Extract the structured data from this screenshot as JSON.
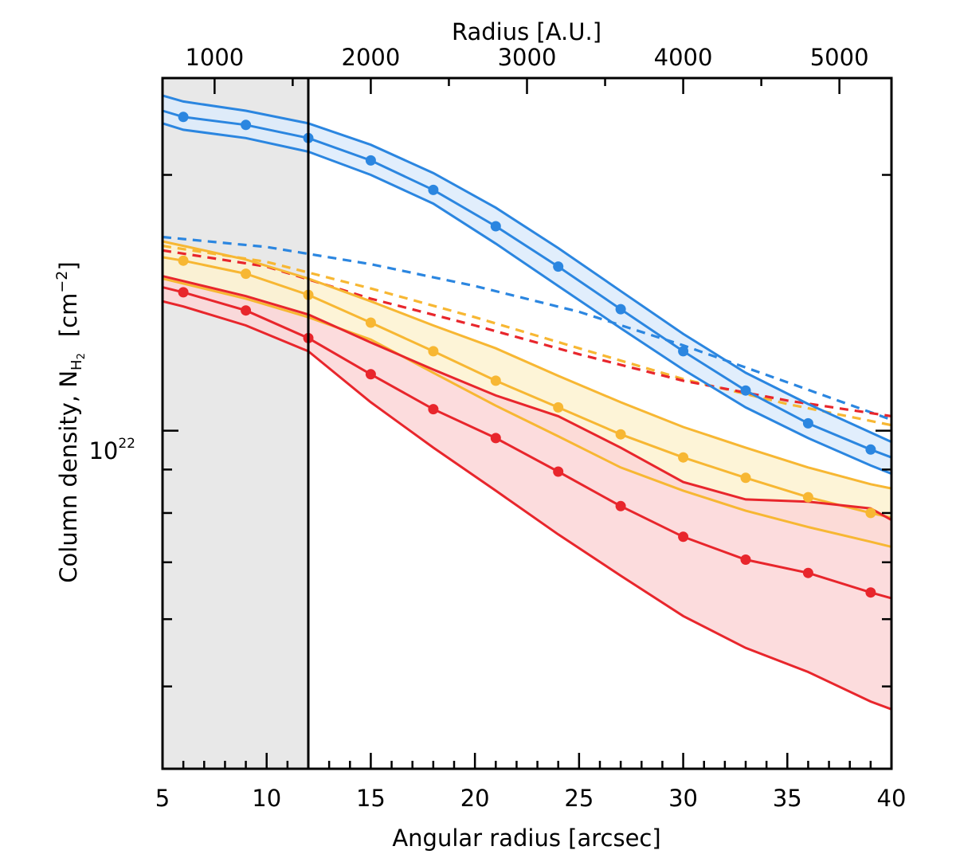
{
  "chart_data": {
    "type": "line",
    "title": "",
    "xlabel": "Angular radius [arcsec]",
    "x2label": "Radius [A.U.]",
    "ylabel_main": "Column density, N",
    "ylabel_sub": "H",
    "ylabel_sub2": "2",
    "ylabel_units": "[cm",
    "ylabel_units_exp": "−2",
    "ylabel_units_close": "]",
    "xlim": [
      5,
      40
    ],
    "ylim": [
      4e+21,
      2.6e+22
    ],
    "yscale": "log",
    "x_ticks": [
      5,
      10,
      15,
      20,
      25,
      30,
      35,
      40
    ],
    "x_tick_labels": [
      "5",
      "10",
      "15",
      "20",
      "25",
      "30",
      "35",
      "40"
    ],
    "x_minor_step": 1,
    "x2_ticks_arcsec": [
      7.5,
      15.0,
      22.5,
      30.0,
      37.5
    ],
    "x2_tick_labels": [
      "1000",
      "2000",
      "3000",
      "4000",
      "5000"
    ],
    "y_labeled_tick_base": "10",
    "y_labeled_tick_exp": "22",
    "y_labeled_tick_value": 1e+22,
    "y_minor_ticks": [
      5e+21,
      6e+21,
      7e+21,
      8e+21,
      9e+21,
      2e+22
    ],
    "shaded_region": {
      "x_from": 5,
      "x_to": 12,
      "color": "#e8e8e8"
    },
    "vertical_line_x": 12,
    "colors": {
      "blue": "#2b86e0",
      "yellow": "#f7b733",
      "red": "#e8262c"
    },
    "series": [
      {
        "name": "blue",
        "color": "#2b86e0",
        "band_fill": "#dcebfb",
        "x": [
          5,
          6,
          9,
          12,
          15,
          18,
          21,
          24,
          27,
          30,
          33,
          36,
          39,
          40
        ],
        "center": [
          2.38e+22,
          2.34e+22,
          2.29e+22,
          2.21e+22,
          2.08e+22,
          1.92e+22,
          1.74e+22,
          1.56e+22,
          1.39e+22,
          1.24e+22,
          1.115e+22,
          1.02e+22,
          9.5e+21,
          9.3e+21
        ],
        "upper": [
          2.48e+22,
          2.44e+22,
          2.38e+22,
          2.3e+22,
          2.17e+22,
          2.01e+22,
          1.83e+22,
          1.64e+22,
          1.46e+22,
          1.3e+22,
          1.17e+22,
          1.075e+22,
          9.95e+21,
          9.7e+21
        ],
        "lower": [
          2.3e+22,
          2.26e+22,
          2.21e+22,
          2.13e+22,
          2e+22,
          1.85e+22,
          1.66e+22,
          1.48e+22,
          1.32e+22,
          1.18e+22,
          1.065e+22,
          9.8e+21,
          9.1e+21,
          8.9e+21
        ],
        "markers_x": [
          6,
          9,
          12,
          15,
          18,
          21,
          24,
          27,
          30,
          33,
          36,
          39
        ],
        "dashed_x": [
          5,
          10,
          15,
          20,
          25,
          30,
          35,
          40
        ],
        "dashed": [
          1.69e+22,
          1.645e+22,
          1.57e+22,
          1.48e+22,
          1.38e+22,
          1.26e+22,
          1.14e+22,
          1.03e+22
        ]
      },
      {
        "name": "yellow",
        "color": "#f7b733",
        "band_fill": "#fdf2d0",
        "x": [
          5,
          6,
          9,
          12,
          15,
          18,
          21,
          24,
          27,
          30,
          33,
          36,
          39,
          40
        ],
        "center": [
          1.6e+22,
          1.585e+22,
          1.53e+22,
          1.445e+22,
          1.34e+22,
          1.24e+22,
          1.145e+22,
          1.065e+22,
          9.9e+21,
          9.3e+21,
          8.8e+21,
          8.35e+21,
          8e+21,
          7.9e+21
        ],
        "upper": [
          1.67e+22,
          1.65e+22,
          1.59e+22,
          1.51e+22,
          1.42e+22,
          1.33e+22,
          1.25e+22,
          1.16e+22,
          1.08e+22,
          1.01e+22,
          9.55e+21,
          9.05e+21,
          8.65e+21,
          8.55e+21
        ],
        "lower": [
          1.51e+22,
          1.49e+22,
          1.43e+22,
          1.36e+22,
          1.28e+22,
          1.17e+22,
          1.07e+22,
          9.85e+21,
          9.05e+21,
          8.5e+21,
          8.05e+21,
          7.7e+21,
          7.4e+21,
          7.3e+21
        ],
        "markers_x": [
          6,
          9,
          12,
          15,
          18,
          21,
          24,
          27,
          30,
          33,
          36,
          39
        ],
        "dashed_x": [
          5,
          10,
          15,
          20,
          25,
          30,
          35,
          40
        ],
        "dashed": [
          1.65e+22,
          1.58e+22,
          1.47e+22,
          1.36e+22,
          1.25e+22,
          1.15e+22,
          1.075e+22,
          1.015e+22
        ]
      },
      {
        "name": "red",
        "color": "#e8262c",
        "band_fill": "#fbd6d7",
        "x": [
          5,
          6,
          9,
          12,
          15,
          18,
          21,
          24,
          27,
          30,
          33,
          36,
          39,
          40
        ],
        "center": [
          1.475e+22,
          1.455e+22,
          1.385e+22,
          1.285e+22,
          1.165e+22,
          1.06e+22,
          9.8e+21,
          8.95e+21,
          8.15e+21,
          7.5e+21,
          7.05e+21,
          6.8e+21,
          6.45e+21,
          6.35e+21
        ],
        "upper": [
          1.52e+22,
          1.5e+22,
          1.44e+22,
          1.37e+22,
          1.27e+22,
          1.18e+22,
          1.1e+22,
          1.04e+22,
          9.55e+21,
          8.7e+21,
          8.3e+21,
          8.25e+21,
          8.1e+21,
          7.85e+21
        ],
        "lower": [
          1.42e+22,
          1.4e+22,
          1.33e+22,
          1.24e+22,
          1.08e+22,
          9.55e+21,
          8.5e+21,
          7.55e+21,
          6.75e+21,
          6.05e+21,
          5.55e+21,
          5.2e+21,
          4.8e+21,
          4.7e+21
        ],
        "markers_x": [
          6,
          9,
          12,
          15,
          18,
          21,
          24,
          27,
          30,
          33,
          36,
          39
        ],
        "dashed_x": [
          5,
          10,
          15,
          20,
          25,
          30,
          35,
          40
        ],
        "dashed": [
          1.63e+22,
          1.56e+22,
          1.43e+22,
          1.33e+22,
          1.23e+22,
          1.145e+22,
          1.085e+22,
          1.04e+22
        ]
      }
    ]
  }
}
